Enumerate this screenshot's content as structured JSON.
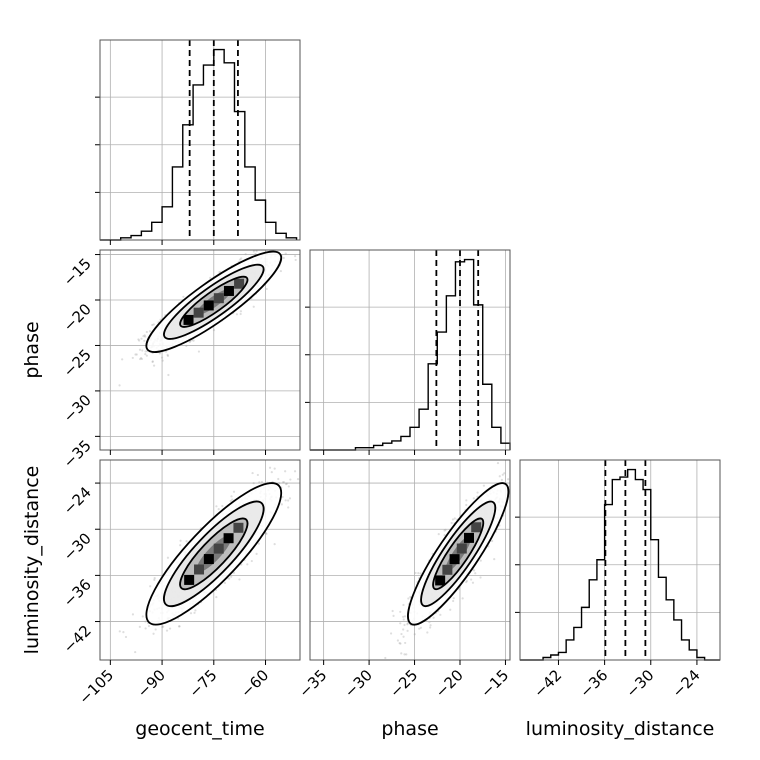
{
  "chart_data": {
    "type": "corner",
    "variables": [
      "geocent_time",
      "phase",
      "luminosity_distance"
    ],
    "axis_labels": {
      "x": [
        "geocent_time",
        "phase",
        "luminosity_distance"
      ],
      "y": [
        "phase",
        "luminosity_distance"
      ]
    },
    "ranges": {
      "geocent_time": [
        -108,
        -50
      ],
      "phase": [
        -36.5,
        -14.5
      ],
      "luminosity_distance": [
        -47,
        -21
      ]
    },
    "ticks": {
      "geocent_time": {
        "values": [
          -105,
          -90,
          -75,
          -60
        ],
        "labels": [
          "−105",
          "−90",
          "−75",
          "−60"
        ]
      },
      "phase": {
        "values": [
          -35,
          -30,
          -25,
          -20,
          -15
        ],
        "labels": [
          "−35",
          "−30",
          "−25",
          "−20",
          "−15"
        ]
      },
      "luminosity_distance": {
        "values": [
          -42,
          -36,
          -30,
          -24
        ],
        "labels": [
          "−42",
          "−36",
          "−30",
          "−24"
        ]
      }
    },
    "quantiles": {
      "geocent_time": [
        -82,
        -75,
        -68
      ],
      "phase": [
        -22.6,
        -20.0,
        -18.0
      ],
      "luminosity_distance": [
        -35.9,
        -33.3,
        -30.7
      ]
    },
    "histograms": {
      "geocent_time": {
        "edges": [
          -108,
          -105,
          -102,
          -99,
          -96,
          -93,
          -90,
          -87,
          -84,
          -81,
          -78,
          -75,
          -72,
          -69,
          -66,
          -63,
          -60,
          -57,
          -54,
          -51
        ],
        "counts": [
          0,
          0,
          1,
          2,
          4,
          8,
          15,
          33,
          52,
          70,
          79,
          86,
          80,
          58,
          33,
          18,
          8,
          3,
          1
        ]
      },
      "phase": {
        "edges": [
          -36.5,
          -35.5,
          -34.5,
          -33.5,
          -32.5,
          -31.5,
          -30.5,
          -29.5,
          -28.5,
          -27.5,
          -26.5,
          -25.5,
          -24.5,
          -23.5,
          -22.5,
          -21.5,
          -20.5,
          -19.5,
          -18.5,
          -17.5,
          -16.5,
          -15.5,
          -14.5
        ],
        "counts": [
          0,
          0,
          0,
          0,
          0,
          1,
          1,
          2,
          3,
          4,
          6,
          10,
          18,
          38,
          52,
          68,
          83,
          84,
          64,
          29,
          10,
          3
        ]
      },
      "luminosity_distance": {
        "edges": [
          -47,
          -46,
          -45,
          -44,
          -43,
          -42,
          -41,
          -40,
          -39,
          -38,
          -37,
          -36,
          -35,
          -34,
          -33,
          -32,
          -31,
          -30,
          -29,
          -28,
          -27,
          -26,
          -25,
          -24,
          -23,
          -22,
          -21
        ],
        "counts": [
          0,
          0,
          0,
          1,
          2,
          3,
          8,
          13,
          21,
          32,
          40,
          62,
          72,
          73,
          76,
          72,
          68,
          48,
          33,
          24,
          16,
          8,
          4,
          1,
          0,
          0
        ]
      }
    },
    "pair_stats": [
      {
        "x": "geocent_time",
        "y": "phase",
        "mean": [
          -75,
          -20.2
        ],
        "sd": [
          8.5,
          2.4
        ],
        "corr": 0.88
      },
      {
        "x": "geocent_time",
        "y": "luminosity_distance",
        "mean": [
          -75,
          -33.2
        ],
        "sd": [
          8.5,
          4.0
        ],
        "corr": 0.86
      },
      {
        "x": "phase",
        "y": "luminosity_distance",
        "mean": [
          -20.2,
          -33.2
        ],
        "sd": [
          2.4,
          4.0
        ],
        "corr": 0.88
      }
    ],
    "grid": true,
    "colors": {
      "line": "#000000",
      "scatter": "#a0a0a0",
      "grid": "#b0b0b0"
    }
  }
}
